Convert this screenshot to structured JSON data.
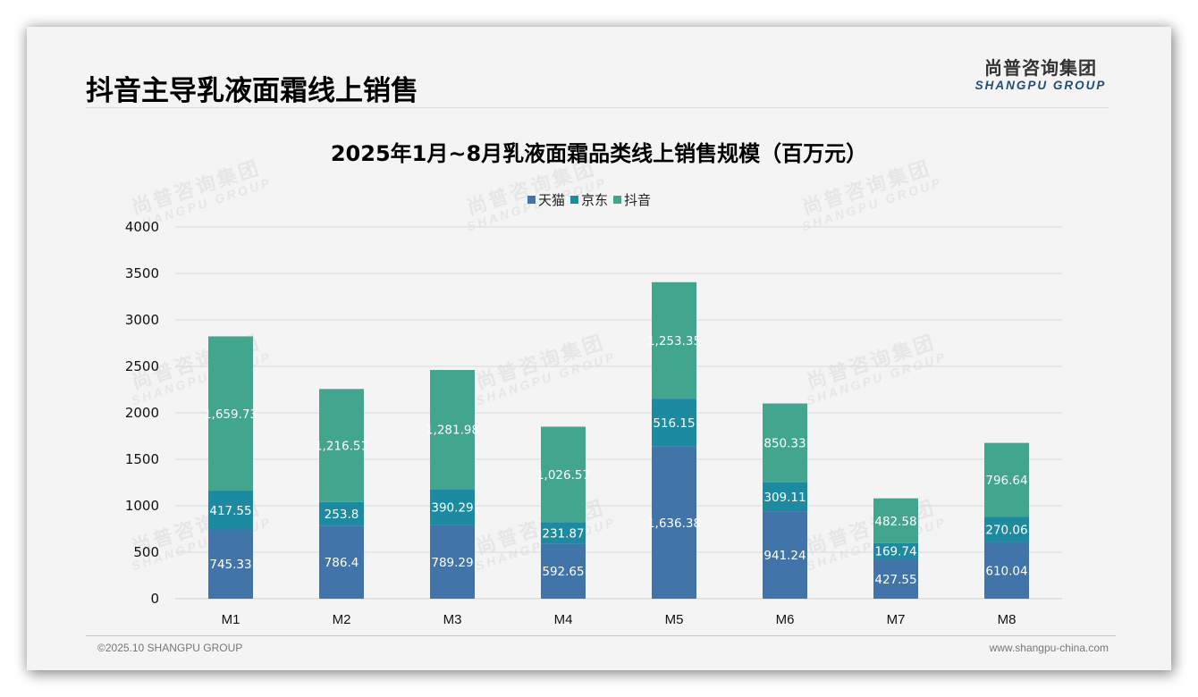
{
  "header": {
    "page_title": "抖音主导乳液面霜线上销售",
    "logo_cn": "尚普咨询集团",
    "logo_en": "SHANGPU GROUP"
  },
  "watermark": {
    "cn": "尚普咨询集团",
    "en": "SHANGPU GROUP"
  },
  "footer": {
    "copyright": "©2025.10 SHANGPU GROUP",
    "website": "www.shangpu-china.com"
  },
  "chart_data": {
    "type": "bar",
    "stacked": true,
    "title": "2025年1月~8月乳液面霜品类线上销售规模（百万元）",
    "xlabel": "",
    "ylabel": "",
    "categories": [
      "M1",
      "M2",
      "M3",
      "M4",
      "M5",
      "M6",
      "M7",
      "M8"
    ],
    "series": [
      {
        "name": "天猫",
        "color": "#4174a8",
        "values": [
          745.33,
          786.4,
          789.29,
          592.65,
          1636.38,
          941.24,
          427.55,
          610.04
        ],
        "labels": [
          "745.33",
          "786.4",
          "789.29",
          "592.65",
          "1,636.38",
          "941.24",
          "427.55",
          "610.04"
        ]
      },
      {
        "name": "京东",
        "color": "#1c8aa0",
        "values": [
          417.55,
          253.8,
          390.29,
          231.87,
          516.15,
          309.11,
          169.74,
          270.06
        ],
        "labels": [
          "417.55",
          "253.8",
          "390.29",
          "231.87",
          "516.15",
          "309.11",
          "169.74",
          "270.06"
        ]
      },
      {
        "name": "抖音",
        "color": "#42a58e",
        "values": [
          1659.73,
          1216.51,
          1281.98,
          1026.57,
          1253.35,
          850.33,
          482.58,
          796.64
        ],
        "labels": [
          "1,659.73",
          "1,216.51",
          "1,281.98",
          "1,026.57",
          "1,253.35",
          "850.33",
          "482.58",
          "796.64"
        ]
      }
    ],
    "ylim": [
      0,
      4000
    ],
    "yticks": [
      "0",
      "500",
      "1000",
      "1500",
      "2000",
      "2500",
      "3000",
      "3500",
      "4000"
    ],
    "grid": true,
    "legend_position": "top-center"
  }
}
